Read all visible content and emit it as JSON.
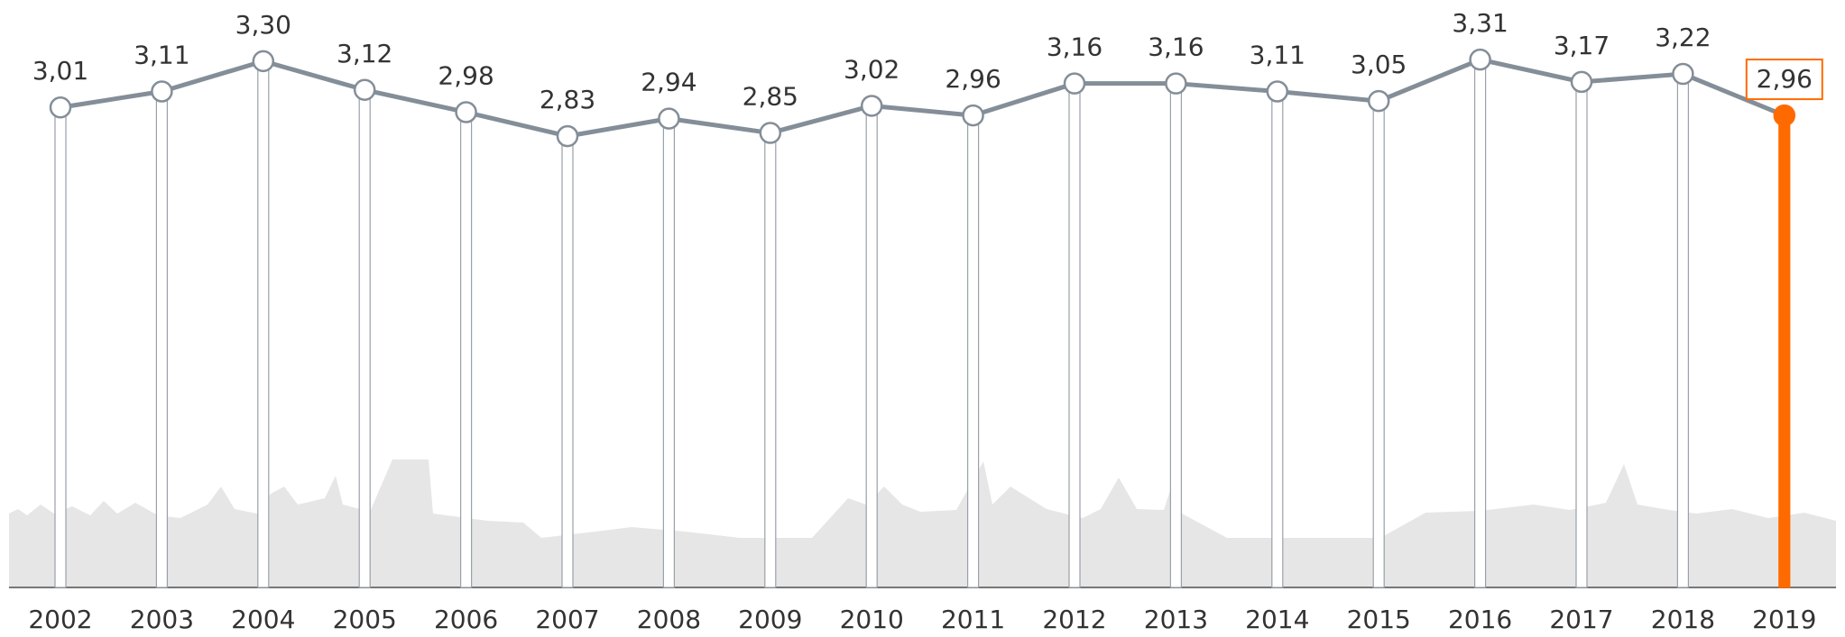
{
  "chart_data": {
    "type": "line",
    "categories": [
      "2002",
      "2003",
      "2004",
      "2005",
      "2006",
      "2007",
      "2008",
      "2009",
      "2010",
      "2011",
      "2012",
      "2013",
      "2014",
      "2015",
      "2016",
      "2017",
      "2018",
      "2019"
    ],
    "values": [
      3.01,
      3.11,
      3.3,
      3.12,
      2.98,
      2.83,
      2.94,
      2.85,
      3.02,
      2.96,
      3.16,
      3.16,
      3.11,
      3.05,
      3.31,
      3.17,
      3.22,
      2.96
    ],
    "value_labels": [
      "3,01",
      "3,11",
      "3,30",
      "3,12",
      "2,98",
      "2,83",
      "2,94",
      "2,85",
      "3,02",
      "2,96",
      "3,16",
      "3,16",
      "3,11",
      "3,05",
      "3,31",
      "3,17",
      "3,22",
      "2,96"
    ],
    "color": "#848e98",
    "highlight_color": "#ff6a00",
    "highlight_index": 17
  }
}
